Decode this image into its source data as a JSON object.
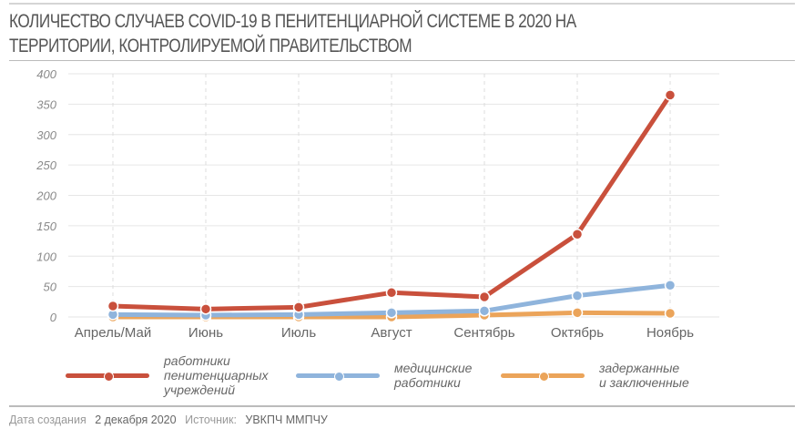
{
  "title": "КОЛИЧЕСТВО СЛУЧАЕВ COVID-19 В ПЕНИТЕНЦИАРНОЙ СИСТЕМЕ В 2020 НА ТЕРРИТОРИИ, КОНТРОЛИРУЕМОЙ ПРАВИТЕЛЬСТВОМ",
  "title_line1": "КОЛИЧЕСТВО СЛУЧАЕВ COVID-19 В ПЕНИТЕНЦИАРНОЙ СИСТЕМЕ В 2020 НА",
  "title_line2": "ТЕРРИТОРИИ, КОНТРОЛИРУЕМОЙ ПРАВИТЕЛЬСТВОМ",
  "footer": {
    "created_label": "Дата создания",
    "created_value": "2 декабря 2020",
    "source_label": "Источник:",
    "source_value": "УВКПЧ ММПЧУ"
  },
  "chart_data": {
    "type": "line",
    "title": "КОЛИЧЕСТВО СЛУЧАЕВ COVID-19 В ПЕНИТЕНЦИАРНОЙ СИСТЕМЕ В 2020 НА ТЕРРИТОРИИ, КОНТРОЛИРУЕМОЙ ПРАВИТЕЛЬСТВОМ",
    "xlabel": "",
    "ylabel": "",
    "categories": [
      "Апрель/Май",
      "Июнь",
      "Июль",
      "Август",
      "Сентябрь",
      "Октябрь",
      "Ноябрь"
    ],
    "ylim": [
      0,
      400
    ],
    "yticks": [
      0,
      50,
      100,
      150,
      200,
      250,
      300,
      350,
      400
    ],
    "grid": true,
    "legend_position": "bottom",
    "series": [
      {
        "name": "работники пенитенциарных учреждений",
        "color": "#c9503c",
        "values": [
          18,
          13,
          16,
          40,
          33,
          136,
          365
        ]
      },
      {
        "name": "медицинские работники",
        "color": "#8fb4dc",
        "values": [
          4,
          3,
          4,
          7,
          10,
          35,
          52
        ]
      },
      {
        "name": "задержанные и заключенные",
        "color": "#eba45a",
        "values": [
          0,
          0,
          0,
          0,
          3,
          7,
          6
        ]
      }
    ]
  },
  "legend": [
    {
      "label": "работники\nпенитенциарных\nучреждений",
      "color": "#c9503c"
    },
    {
      "label": "медицинские\nработники",
      "color": "#8fb4dc"
    },
    {
      "label": "задержанные\nи заключенные",
      "color": "#eba45a"
    }
  ]
}
